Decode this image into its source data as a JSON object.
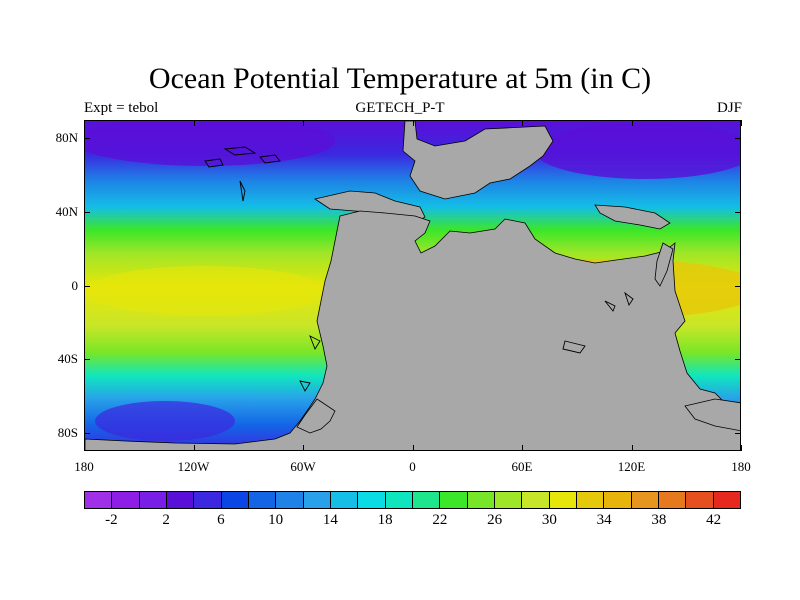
{
  "title": "Ocean Potential Temperature at 5m (in C)",
  "subtitle_left": "Expt = tebol",
  "subtitle_center": "GETECH_P-T",
  "subtitle_right": "DJF",
  "map": {
    "projection": "cylindrical equidistant",
    "lon_range": [
      -180,
      180
    ],
    "lat_range": [
      -90,
      90
    ],
    "land_color": "#A8A8A8",
    "lat_ticks": [
      {
        "value": 80,
        "label": "80N"
      },
      {
        "value": 40,
        "label": "40N"
      },
      {
        "value": 0,
        "label": "0"
      },
      {
        "value": -40,
        "label": "40S"
      },
      {
        "value": -80,
        "label": "80S"
      }
    ],
    "lon_ticks": [
      {
        "value": -180,
        "label": "180"
      },
      {
        "value": -120,
        "label": "120W"
      },
      {
        "value": -60,
        "label": "60W"
      },
      {
        "value": 0,
        "label": "0"
      },
      {
        "value": 60,
        "label": "60E"
      },
      {
        "value": 120,
        "label": "120E"
      },
      {
        "value": 180,
        "label": "180"
      }
    ]
  },
  "colorbar": {
    "colors": [
      "#A030E8",
      "#8C1EE6",
      "#781EE6",
      "#5A0FD8",
      "#3C28E0",
      "#0A46E6",
      "#1464E6",
      "#1E82E6",
      "#28A0EA",
      "#14BEE6",
      "#0ADCE6",
      "#10E6BE",
      "#1EE68C",
      "#3CE628",
      "#78E628",
      "#A0E628",
      "#C8E628",
      "#E6E60A",
      "#E6C80A",
      "#E6B40A",
      "#E6961E",
      "#E6781E",
      "#E6501E",
      "#E6281E"
    ],
    "labels": [
      "-2",
      "2",
      "6",
      "10",
      "14",
      "18",
      "22",
      "26",
      "30",
      "34",
      "38",
      "42"
    ],
    "label_values": [
      -2,
      2,
      6,
      10,
      14,
      18,
      22,
      26,
      30,
      34,
      38,
      42
    ]
  }
}
